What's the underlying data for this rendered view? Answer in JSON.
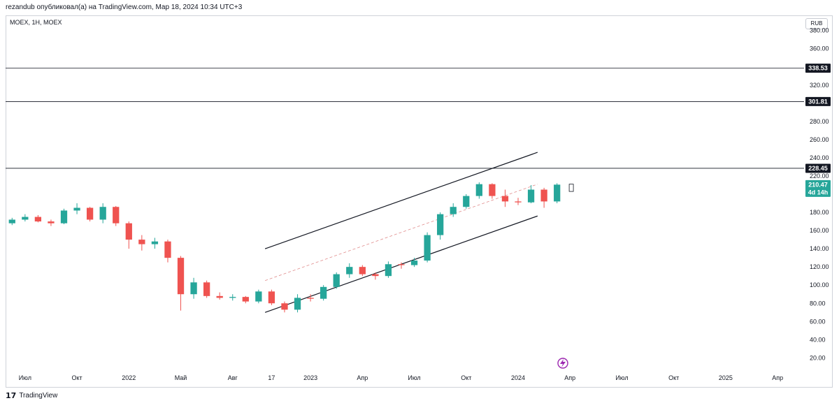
{
  "header": {
    "publisher_text": "rezandub опубликовал(а) на TradingView.com, Мар 18, 2024 10:34 UTC+3"
  },
  "symbol_info": "MOEX, 1H, MOEX",
  "currency": "RUB",
  "footer": {
    "logo_text": "17",
    "brand": "TradingView"
  },
  "colors": {
    "up": "#26a69a",
    "down": "#ef5350",
    "current_price_bg": "#26a69a",
    "level_tag_bg": "#131722",
    "lightning_icon": "#9c27b0"
  },
  "chart_data": {
    "type": "candlestick",
    "title": "",
    "y_range": [
      8,
      392
    ],
    "x_range": [
      0,
      61
    ],
    "y_ticks": [
      20,
      40,
      60,
      80,
      100,
      120,
      140,
      160,
      180,
      200,
      220,
      240,
      260,
      280,
      320,
      360,
      380
    ],
    "x_ticks": [
      {
        "label": "Июл",
        "x": 1.5
      },
      {
        "label": "Окт",
        "x": 5.5
      },
      {
        "label": "2022",
        "x": 9.5
      },
      {
        "label": "Май",
        "x": 13.5
      },
      {
        "label": "Авг",
        "x": 17.5
      },
      {
        "label": "17",
        "x": 20.5
      },
      {
        "label": "2023",
        "x": 23.5
      },
      {
        "label": "Апр",
        "x": 27.5
      },
      {
        "label": "Июл",
        "x": 31.5
      },
      {
        "label": "Окт",
        "x": 35.5
      },
      {
        "label": "2024",
        "x": 39.5
      },
      {
        "label": "Апр",
        "x": 43.5
      },
      {
        "label": "Июл",
        "x": 47.5
      },
      {
        "label": "Окт",
        "x": 51.5
      },
      {
        "label": "2025",
        "x": 55.5
      },
      {
        "label": "Апр",
        "x": 59.5
      }
    ],
    "candles": [
      {
        "o": 168,
        "h": 174,
        "l": 166,
        "c": 172
      },
      {
        "o": 172,
        "h": 178,
        "l": 170,
        "c": 175
      },
      {
        "o": 175,
        "h": 177,
        "l": 169,
        "c": 170
      },
      {
        "o": 170,
        "h": 172,
        "l": 165,
        "c": 168
      },
      {
        "o": 168,
        "h": 184,
        "l": 167,
        "c": 182
      },
      {
        "o": 182,
        "h": 190,
        "l": 178,
        "c": 185
      },
      {
        "o": 185,
        "h": 186,
        "l": 170,
        "c": 172
      },
      {
        "o": 172,
        "h": 190,
        "l": 168,
        "c": 186
      },
      {
        "o": 186,
        "h": 187,
        "l": 165,
        "c": 168
      },
      {
        "o": 168,
        "h": 170,
        "l": 140,
        "c": 150
      },
      {
        "o": 150,
        "h": 155,
        "l": 138,
        "c": 145
      },
      {
        "o": 145,
        "h": 152,
        "l": 140,
        "c": 148
      },
      {
        "o": 148,
        "h": 150,
        "l": 125,
        "c": 130
      },
      {
        "o": 130,
        "h": 132,
        "l": 72,
        "c": 90
      },
      {
        "o": 90,
        "h": 108,
        "l": 85,
        "c": 103
      },
      {
        "o": 103,
        "h": 105,
        "l": 86,
        "c": 88
      },
      {
        "o": 88,
        "h": 92,
        "l": 84,
        "c": 86
      },
      {
        "o": 86,
        "h": 90,
        "l": 83,
        "c": 87
      },
      {
        "o": 87,
        "h": 88,
        "l": 80,
        "c": 82
      },
      {
        "o": 82,
        "h": 95,
        "l": 80,
        "c": 93
      },
      {
        "o": 93,
        "h": 95,
        "l": 78,
        "c": 80
      },
      {
        "o": 80,
        "h": 82,
        "l": 70,
        "c": 73
      },
      {
        "o": 73,
        "h": 90,
        "l": 70,
        "c": 86
      },
      {
        "o": 86,
        "h": 90,
        "l": 82,
        "c": 85
      },
      {
        "o": 85,
        "h": 100,
        "l": 83,
        "c": 98
      },
      {
        "o": 98,
        "h": 114,
        "l": 96,
        "c": 112
      },
      {
        "o": 112,
        "h": 124,
        "l": 108,
        "c": 120
      },
      {
        "o": 120,
        "h": 122,
        "l": 110,
        "c": 112
      },
      {
        "o": 112,
        "h": 114,
        "l": 106,
        "c": 110
      },
      {
        "o": 110,
        "h": 126,
        "l": 108,
        "c": 123
      },
      {
        "o": 123,
        "h": 125,
        "l": 118,
        "c": 122
      },
      {
        "o": 122,
        "h": 130,
        "l": 120,
        "c": 127
      },
      {
        "o": 127,
        "h": 158,
        "l": 125,
        "c": 155
      },
      {
        "o": 155,
        "h": 180,
        "l": 150,
        "c": 178
      },
      {
        "o": 178,
        "h": 190,
        "l": 175,
        "c": 186
      },
      {
        "o": 186,
        "h": 200,
        "l": 184,
        "c": 198
      },
      {
        "o": 198,
        "h": 213,
        "l": 195,
        "c": 211
      },
      {
        "o": 211,
        "h": 212,
        "l": 195,
        "c": 198
      },
      {
        "o": 198,
        "h": 205,
        "l": 186,
        "c": 192
      },
      {
        "o": 192,
        "h": 196,
        "l": 188,
        "c": 191
      },
      {
        "o": 191,
        "h": 210,
        "l": 190,
        "c": 205
      },
      {
        "o": 205,
        "h": 207,
        "l": 185,
        "c": 192
      },
      {
        "o": 192,
        "h": 212,
        "l": 190,
        "c": 210.47
      }
    ],
    "channel": {
      "upper": [
        [
          20,
          140
        ],
        [
          41,
          246
        ]
      ],
      "lower": [
        [
          20,
          70
        ],
        [
          41,
          176
        ]
      ],
      "mid": [
        [
          20,
          105
        ],
        [
          41,
          211
        ]
      ]
    },
    "levels": [
      338.53,
      301.81,
      228.45
    ],
    "current_price": {
      "value": "210.47",
      "countdown": "4d 14h"
    }
  }
}
